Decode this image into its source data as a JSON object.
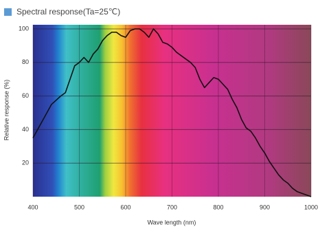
{
  "chart_data": {
    "type": "line",
    "title": "Spectral response(Ta=25℃)",
    "x_label": "Wave length (nm)",
    "y_label": "Relative response (%)",
    "x": [
      400,
      420,
      440,
      460,
      470,
      480,
      490,
      500,
      510,
      520,
      530,
      540,
      550,
      560,
      570,
      580,
      590,
      600,
      610,
      620,
      630,
      640,
      650,
      660,
      670,
      680,
      690,
      700,
      710,
      720,
      730,
      740,
      750,
      760,
      770,
      780,
      790,
      800,
      810,
      820,
      830,
      840,
      850,
      860,
      870,
      880,
      890,
      900,
      910,
      920,
      930,
      940,
      950,
      960,
      970,
      980,
      990,
      1000
    ],
    "series": [
      {
        "name": "Relative response",
        "color": "#111111",
        "values": [
          35,
          45,
          55,
          60,
          62,
          70,
          78,
          80,
          83,
          80,
          85,
          88,
          93,
          96,
          98,
          98,
          96,
          95,
          99,
          100,
          100,
          98,
          95,
          100,
          97,
          92,
          91,
          89,
          86,
          84,
          82,
          80,
          77,
          70,
          65,
          68,
          71,
          70,
          67,
          64,
          58,
          53,
          46,
          41,
          39,
          35,
          30,
          26,
          21,
          17,
          13,
          10,
          8,
          5,
          3,
          2,
          1,
          0
        ]
      }
    ],
    "xlim": [
      400,
      1000
    ],
    "xticks": [
      400,
      500,
      600,
      700,
      800,
      900,
      1000
    ],
    "ylim": [
      0,
      100
    ],
    "yticks": [
      20,
      40,
      60,
      80,
      100
    ],
    "grid": true
  }
}
